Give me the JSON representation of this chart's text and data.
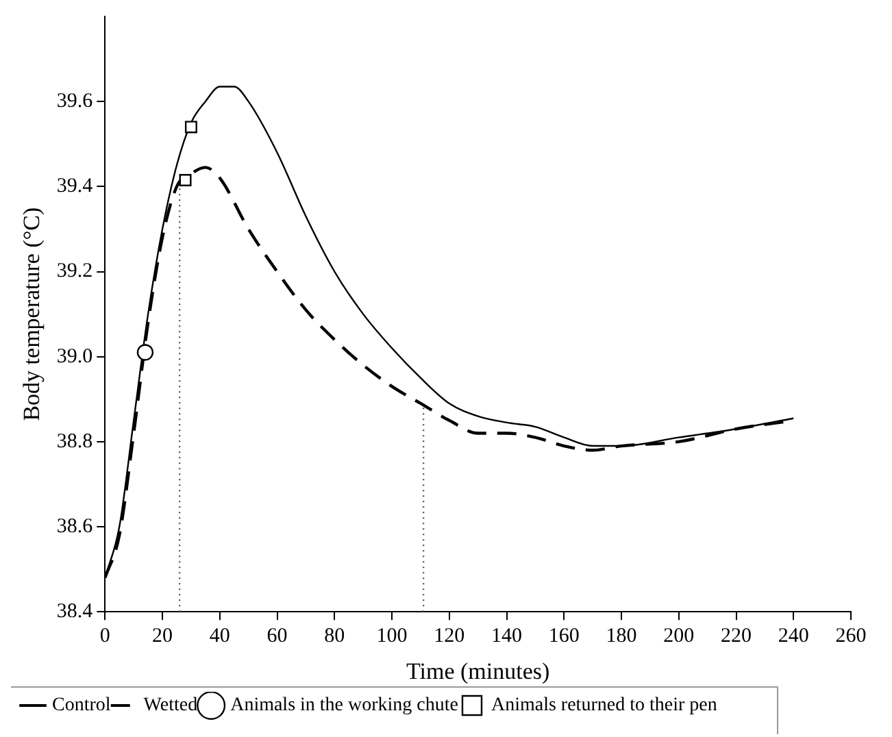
{
  "chart_data": {
    "type": "line",
    "xlabel": "Time (minutes)",
    "ylabel": "Body temperature (°C)",
    "xlim": [
      0,
      260
    ],
    "xticks": [
      0,
      20,
      40,
      60,
      80,
      100,
      120,
      140,
      160,
      180,
      200,
      220,
      240,
      260
    ],
    "ylim": [
      38.4,
      39.8
    ],
    "yticks": [
      38.4,
      38.6,
      38.8,
      {
        "value": 39,
        "label": "39.0"
      },
      39.2,
      39.4,
      39.6
    ],
    "grid": false,
    "legend": "bottom",
    "series": [
      {
        "name": "Control",
        "color": "#000000",
        "line_style": "solid",
        "marker": "none",
        "x": [
          0,
          5,
          10,
          15,
          20,
          25,
          30,
          35,
          40,
          45,
          50,
          60,
          70,
          80,
          90,
          100,
          110,
          120,
          130,
          140,
          150,
          160,
          170,
          180,
          200,
          220,
          240
        ],
        "values": [
          38.48,
          38.6,
          38.85,
          39.1,
          39.3,
          39.45,
          39.55,
          39.6,
          39.635,
          39.635,
          39.6,
          39.48,
          39.33,
          39.2,
          39.1,
          39.02,
          38.95,
          38.89,
          38.86,
          38.845,
          38.835,
          38.81,
          38.79,
          38.79,
          38.81,
          38.83,
          38.855
        ]
      },
      {
        "name": "Wetted",
        "color": "#000000",
        "line_style": "dashed",
        "marker": "none",
        "x": [
          0,
          5,
          10,
          15,
          20,
          25,
          30,
          35,
          40,
          50,
          60,
          70,
          80,
          90,
          100,
          110,
          120,
          130,
          140,
          150,
          160,
          170,
          180,
          200,
          220,
          240
        ],
        "values": [
          38.48,
          38.58,
          38.82,
          39.08,
          39.28,
          39.4,
          39.43,
          39.445,
          39.42,
          39.3,
          39.2,
          39.11,
          39.04,
          38.98,
          38.93,
          38.89,
          38.85,
          38.82,
          38.82,
          38.81,
          38.79,
          38.78,
          38.79,
          38.8,
          38.83,
          38.85
        ]
      },
      {
        "name": "Animals in the working chute",
        "type": "scatter",
        "color": "#000000",
        "marker": "circle",
        "x": [
          14
        ],
        "values": [
          39.01
        ]
      },
      {
        "name": "Animals returned to their pen",
        "type": "scatter",
        "color": "#000000",
        "marker": "square",
        "x": [
          30,
          28
        ],
        "values": [
          39.54,
          39.415
        ]
      }
    ],
    "ref_lines": [
      {
        "axis": "x",
        "value": 26,
        "color": "#555555",
        "line_style": "dotted"
      },
      {
        "axis": "x",
        "value": 111,
        "color": "#555555",
        "line_style": "dotted"
      }
    ]
  }
}
